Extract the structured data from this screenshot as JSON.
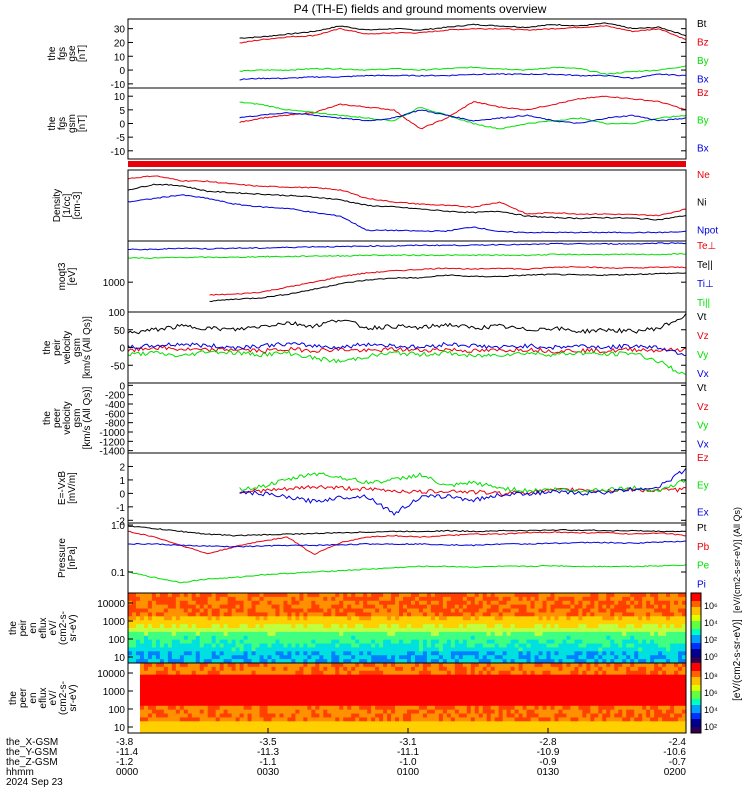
{
  "title": "P4 (TH-E) fields and ground moments overview",
  "colors": {
    "black": "#000000",
    "red": "#e8000b",
    "green": "#00e000",
    "blue": "#0000e0"
  },
  "chart_data": [
    {
      "type": "line",
      "id": "bgse",
      "ylabel": [
        "the",
        "fgs",
        "gse",
        "[nT]"
      ],
      "ticks": [
        30,
        20,
        10,
        0,
        -10
      ],
      "ylim": [
        -13,
        37
      ],
      "x_start": 0.2,
      "series": [
        {
          "name": "Bt",
          "color": "black",
          "values": [
            18,
            15,
            19,
            22,
            23,
            24,
            26,
            28,
            32,
            29,
            30,
            29,
            31,
            33,
            32,
            31,
            33,
            32,
            34,
            30,
            31,
            25
          ]
        },
        {
          "name": "Bz",
          "color": "red",
          "values": [
            11,
            12,
            15,
            20,
            19,
            22,
            24,
            25,
            30,
            26,
            27,
            27,
            29,
            30,
            30,
            29,
            30,
            31,
            32,
            28,
            30,
            22
          ]
        },
        {
          "name": "By",
          "color": "green",
          "values": [
            -2,
            -2,
            -1,
            0,
            -1,
            0,
            0,
            1,
            1,
            0,
            1,
            0,
            1,
            2,
            1,
            0,
            2,
            1,
            -3,
            -1,
            0,
            3
          ]
        },
        {
          "name": "Bx",
          "color": "blue",
          "values": [
            -10,
            -10,
            -8,
            -7,
            -7,
            -6,
            -6,
            -5,
            -5,
            -4,
            -4,
            -4,
            -4,
            -3,
            -3,
            -3,
            -3,
            -4,
            -4,
            -6,
            -3,
            -4
          ]
        }
      ]
    },
    {
      "type": "line",
      "id": "bgsm",
      "ylabel": [
        "the",
        "fgs",
        "gsm",
        "[nT]"
      ],
      "ticks": [
        10,
        5,
        0,
        -5,
        -10
      ],
      "ylim": [
        -13,
        13
      ],
      "x_start": 0.2,
      "series": [
        {
          "name": "Bz",
          "color": "red",
          "values": [
            -11,
            -8,
            -6,
            -3,
            0,
            2,
            3,
            4,
            7,
            6,
            5,
            -2,
            2,
            8,
            6,
            5,
            7,
            9,
            10,
            9,
            8,
            5
          ]
        },
        {
          "name": "By",
          "color": "green",
          "values": [
            7,
            8,
            9,
            10,
            8,
            7,
            5,
            4,
            3,
            2,
            1,
            6,
            3,
            0,
            -2,
            0,
            1,
            2,
            0,
            0,
            2,
            3
          ]
        },
        {
          "name": "Bx",
          "color": "blue",
          "values": [
            -1,
            -1,
            0,
            1,
            2,
            3,
            4,
            3,
            2,
            1,
            2,
            5,
            3,
            1,
            2,
            3,
            1,
            0,
            2,
            3,
            1,
            2
          ]
        }
      ]
    },
    {
      "type": "line",
      "id": "density",
      "ylabel": [
        "Density",
        "[1/cc]",
        "[cm-3]"
      ],
      "ticks": [],
      "ylim": [
        0,
        1
      ],
      "x_start": 0.0,
      "series": [
        {
          "name": "Ne",
          "color": "red",
          "values": [
            0.88,
            0.92,
            0.85,
            0.84,
            0.8,
            0.77,
            0.76,
            0.75,
            0.72,
            0.6,
            0.55,
            0.52,
            0.5,
            0.48,
            0.55,
            0.38,
            0.4,
            0.38,
            0.38,
            0.37,
            0.36,
            0.45
          ]
        },
        {
          "name": "Ni",
          "color": "black",
          "values": [
            0.72,
            0.8,
            0.78,
            0.7,
            0.68,
            0.66,
            0.64,
            0.62,
            0.58,
            0.5,
            0.48,
            0.45,
            0.42,
            0.4,
            0.42,
            0.35,
            0.33,
            0.32,
            0.33,
            0.32,
            0.3,
            0.36
          ]
        },
        {
          "name": "Npot",
          "color": "blue",
          "values": [
            0.55,
            0.6,
            0.65,
            0.6,
            0.52,
            0.48,
            0.46,
            0.4,
            0.35,
            0.15,
            0.15,
            0.14,
            0.14,
            0.2,
            0.13,
            0.12,
            0.12,
            0.12,
            0.12,
            0.12,
            0.12,
            0.13
          ]
        }
      ]
    },
    {
      "type": "line",
      "id": "temp",
      "ylabel": [
        "moqt3",
        "[eV]"
      ],
      "ticks": [
        1000
      ],
      "ylim": [
        0,
        1
      ],
      "x_start": 0.0,
      "series": [
        {
          "name": "Te⊥",
          "color": "red",
          "values": [
            null,
            null,
            null,
            0.24,
            0.25,
            0.28,
            0.35,
            0.42,
            0.5,
            0.55,
            0.58,
            0.6,
            0.62,
            0.6,
            0.62,
            0.6,
            0.63,
            0.64,
            0.62,
            0.62,
            0.63,
            0.63
          ]
        },
        {
          "name": "Te||",
          "color": "black",
          "values": [
            null,
            null,
            null,
            0.15,
            0.18,
            0.2,
            0.25,
            0.32,
            0.4,
            0.45,
            0.48,
            0.48,
            0.52,
            0.5,
            0.5,
            0.52,
            0.53,
            0.52,
            0.52,
            0.53,
            0.54,
            0.55
          ]
        },
        {
          "name": "Ti⊥",
          "color": "blue",
          "values": [
            0.88,
            0.88,
            0.9,
            0.89,
            0.9,
            0.9,
            0.91,
            0.92,
            0.92,
            0.93,
            0.93,
            0.94,
            0.94,
            0.94,
            0.95,
            0.95,
            0.96,
            0.96,
            0.96,
            0.96,
            0.97,
            0.97
          ]
        },
        {
          "name": "Ti||",
          "color": "green",
          "values": [
            0.76,
            0.76,
            0.77,
            0.77,
            0.77,
            0.78,
            0.78,
            0.79,
            0.79,
            0.8,
            0.8,
            0.8,
            0.8,
            0.8,
            0.8,
            0.8,
            0.81,
            0.81,
            0.81,
            0.81,
            0.81,
            0.82
          ]
        }
      ]
    },
    {
      "type": "line",
      "id": "peir",
      "ylabel": [
        "the",
        "peir",
        "velocity",
        "gsm",
        "[km/s (All Qs)]"
      ],
      "ticks": [
        100,
        50,
        0,
        -50
      ],
      "ylim": [
        -100,
        100
      ],
      "x_start": 0.0,
      "series": [
        {
          "name": "Vt",
          "color": "black",
          "values": [
            40,
            50,
            60,
            55,
            50,
            60,
            70,
            60,
            80,
            55,
            60,
            55,
            65,
            55,
            60,
            50,
            55,
            45,
            50,
            45,
            55,
            90
          ]
        },
        {
          "name": "Vz",
          "color": "red",
          "values": [
            -10,
            0,
            -5,
            -8,
            -5,
            -10,
            -5,
            -8,
            -5,
            -10,
            -5,
            -8,
            -5,
            -10,
            -8,
            -5,
            -10,
            -8,
            -10,
            -5,
            -8,
            -5
          ]
        },
        {
          "name": "Vy",
          "color": "green",
          "values": [
            -20,
            -15,
            -25,
            -10,
            -15,
            -20,
            -15,
            -30,
            -40,
            -25,
            -15,
            -20,
            -15,
            -25,
            -20,
            -15,
            -20,
            -15,
            -20,
            -15,
            -40,
            -80
          ]
        },
        {
          "name": "Vx",
          "color": "blue",
          "values": [
            0,
            5,
            10,
            5,
            0,
            5,
            10,
            5,
            0,
            10,
            5,
            0,
            10,
            5,
            0,
            5,
            0,
            5,
            0,
            5,
            0,
            -20
          ]
        }
      ]
    },
    {
      "type": "line",
      "id": "peer",
      "ylabel": [
        "the",
        "peer",
        "velocity",
        "gsm",
        "[km/s (All Qs)]"
      ],
      "ticks": [
        0,
        -200,
        -400,
        -600,
        -800,
        -1000,
        -1200,
        -1400
      ],
      "ylim": [
        -1450,
        50
      ],
      "x_start": 0.0,
      "series": [
        {
          "name": "Vt",
          "color": "black",
          "values": []
        },
        {
          "name": "Vz",
          "color": "red",
          "values": []
        },
        {
          "name": "Vy",
          "color": "green",
          "values": []
        },
        {
          "name": "Vx",
          "color": "blue",
          "values": []
        }
      ]
    },
    {
      "type": "line",
      "id": "efield",
      "ylabel": [
        "E=-VxB",
        "[mV/m]"
      ],
      "ticks": [
        2,
        1,
        0,
        -1,
        -2
      ],
      "ylim": [
        -2.2,
        3
      ],
      "x_start": 0.2,
      "series": [
        {
          "name": "Ez",
          "color": "red",
          "values": [
            0.1,
            0.1,
            0.2,
            0.1,
            0.1,
            0.2,
            0.3,
            0.5,
            0.4,
            0.3,
            0.2,
            0.1,
            0.2,
            0.1,
            0.0,
            0.1,
            0.2,
            0.3,
            0.2,
            0.3,
            0.2,
            0.3
          ]
        },
        {
          "name": "Ey",
          "color": "green",
          "values": [
            0.2,
            0.3,
            0.2,
            0.1,
            0.3,
            0.5,
            1.0,
            1.5,
            1.2,
            0.8,
            1.0,
            1.4,
            0.5,
            0.8,
            0.4,
            0.2,
            0.3,
            0.2,
            0.3,
            0.4,
            0.2,
            1.0
          ]
        },
        {
          "name": "Ex",
          "color": "blue",
          "values": [
            0.0,
            0.1,
            0.0,
            -0.1,
            0.1,
            0.0,
            -0.3,
            -0.6,
            -0.3,
            -0.2,
            -1.5,
            -0.3,
            -0.2,
            -0.5,
            -0.1,
            0.0,
            0.1,
            0.0,
            0.1,
            0.3,
            0.5,
            1.8
          ]
        }
      ]
    },
    {
      "type": "line",
      "id": "pressure",
      "ylabel": [
        "Pressure",
        "[nPa]"
      ],
      "ticks": [
        1.0,
        0.1
      ],
      "ylim": [
        0,
        1
      ],
      "x_start": 0.0,
      "series": [
        {
          "name": "Pt",
          "color": "black",
          "values": [
            0.96,
            0.92,
            0.88,
            0.84,
            0.82,
            0.83,
            0.84,
            0.85,
            0.86,
            0.87,
            0.88,
            0.88,
            0.89,
            0.88,
            0.89,
            0.89,
            0.9,
            0.9,
            0.89,
            0.89,
            0.88,
            0.88
          ]
        },
        {
          "name": "Pb",
          "color": "red",
          "values": [
            0.88,
            0.8,
            0.68,
            0.56,
            0.66,
            0.74,
            0.8,
            0.55,
            0.72,
            0.8,
            0.82,
            0.8,
            0.82,
            0.84,
            0.84,
            0.86,
            0.87,
            0.86,
            0.86,
            0.84,
            0.86,
            0.82
          ]
        },
        {
          "name": "Pe",
          "color": "green",
          "values": [
            0.3,
            0.22,
            0.15,
            0.2,
            0.22,
            0.26,
            0.28,
            0.3,
            0.32,
            0.34,
            0.36,
            0.38,
            0.38,
            0.37,
            0.38,
            0.38,
            0.39,
            0.38,
            0.38,
            0.38,
            0.39,
            0.4
          ]
        },
        {
          "name": "Pi",
          "color": "blue",
          "values": [
            0.7,
            0.7,
            0.68,
            0.67,
            0.66,
            0.67,
            0.68,
            0.68,
            0.69,
            0.7,
            0.7,
            0.7,
            0.69,
            0.68,
            0.7,
            0.7,
            0.71,
            0.72,
            0.72,
            0.71,
            0.73,
            0.74
          ]
        }
      ]
    },
    {
      "type": "heatmap",
      "id": "peir_en",
      "ylabel": [
        "the",
        "peir",
        "en",
        "eflux",
        "eV/",
        "(cm2-s-",
        "sr-eV)"
      ],
      "ticks": [
        "10000",
        "1000",
        "100",
        "10"
      ]
    },
    {
      "type": "heatmap",
      "id": "peer_en",
      "ylabel": [
        "the",
        "peer",
        "en",
        "eflux",
        "eV/",
        "(cm2-s-",
        "sr-eV)"
      ],
      "ticks": [
        "10000",
        "1000",
        "100",
        "10"
      ]
    }
  ],
  "colorbar": {
    "ticks_top": [
      "10⁶",
      "10⁴",
      "10²",
      "10⁰"
    ],
    "ticks_bottom": [
      "10⁸",
      "10⁶",
      "10⁴",
      "10²"
    ],
    "label": "[eV/(cm2-s-sr-eV)]",
    "label_overlap": "[eV/(cm2-s-sr-eV)] (All Qs)"
  },
  "xaxis": {
    "row_labels": [
      "the_X-GSM",
      "the_Y-GSM",
      "the_Z-GSM",
      "hhmm",
      "2024 Sep 23"
    ],
    "columns": [
      [
        "-3.8",
        "-11.4",
        "-1.2",
        "0000"
      ],
      [
        "-3.5",
        "-11.3",
        "-1.1",
        "0030"
      ],
      [
        "-3.1",
        "-11.1",
        "-1.0",
        "0100"
      ],
      [
        "-2.8",
        "-10.9",
        "-0.9",
        "0130"
      ],
      [
        "-2.4",
        "-10.6",
        "-0.7",
        "0200"
      ]
    ]
  }
}
